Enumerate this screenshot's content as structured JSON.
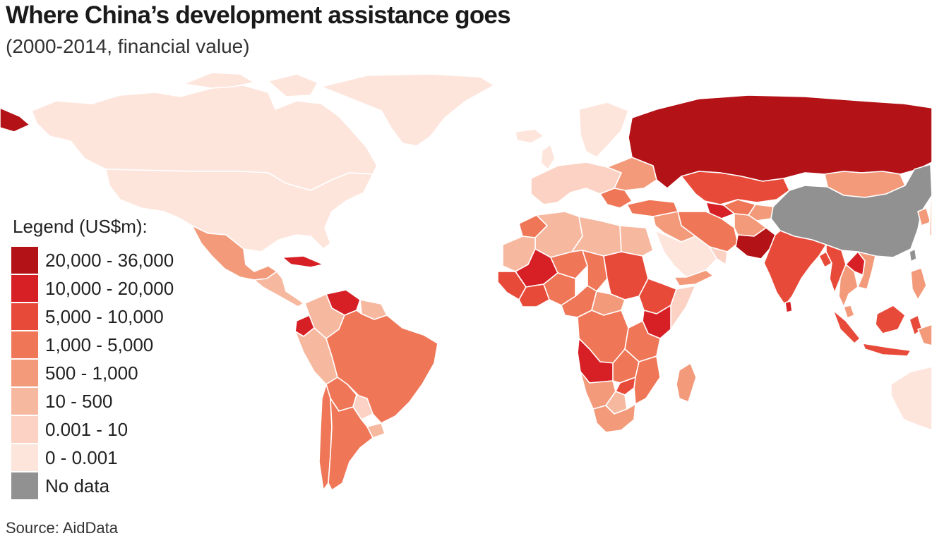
{
  "header": {
    "title": "Where China’s development assistance goes",
    "subtitle": "(2000-2014, financial value)"
  },
  "legend": {
    "title": "Legend (US$m):",
    "items": [
      {
        "label": "20,000 - 36,000",
        "color": "#b31217"
      },
      {
        "label": "10,000 - 20,000",
        "color": "#d62026"
      },
      {
        "label": "5,000 - 10,000",
        "color": "#e84a3a"
      },
      {
        "label": "1,000 - 5,000",
        "color": "#ef7657"
      },
      {
        "label": "500 - 1,000",
        "color": "#f39a7b"
      },
      {
        "label": "10 - 500",
        "color": "#f7b8a0"
      },
      {
        "label": "0.001 - 10",
        "color": "#fbd2c3"
      },
      {
        "label": "0 - 0.001",
        "color": "#fde5dc"
      },
      {
        "label": "No data",
        "color": "#919191"
      }
    ]
  },
  "map": {
    "regions": [
      {
        "name": "russia",
        "class": "20,000 - 36,000"
      },
      {
        "name": "pakistan",
        "class": "20,000 - 36,000"
      },
      {
        "name": "angola",
        "class": "10,000 - 20,000"
      },
      {
        "name": "venezuela",
        "class": "10,000 - 20,000"
      },
      {
        "name": "ecuador",
        "class": "10,000 - 20,000"
      },
      {
        "name": "kenya",
        "class": "10,000 - 20,000"
      },
      {
        "name": "mali",
        "class": "10,000 - 20,000"
      },
      {
        "name": "laos",
        "class": "10,000 - 20,000"
      },
      {
        "name": "turkmenistan",
        "class": "10,000 - 20,000"
      },
      {
        "name": "kazakhstan",
        "class": "5,000 - 10,000"
      },
      {
        "name": "india",
        "class": "5,000 - 10,000"
      },
      {
        "name": "indonesia",
        "class": "5,000 - 10,000"
      },
      {
        "name": "sudan",
        "class": "5,000 - 10,000"
      },
      {
        "name": "ethiopia",
        "class": "5,000 - 10,000"
      },
      {
        "name": "brazil",
        "class": "1,000 - 5,000"
      },
      {
        "name": "argentina",
        "class": "1,000 - 5,000"
      },
      {
        "name": "dr-congo",
        "class": "1,000 - 5,000"
      },
      {
        "name": "iran",
        "class": "1,000 - 5,000"
      },
      {
        "name": "mongolia",
        "class": "500 - 1,000"
      },
      {
        "name": "south-africa",
        "class": "500 - 1,000"
      },
      {
        "name": "mexico",
        "class": "500 - 1,000"
      },
      {
        "name": "peru",
        "class": "10 - 500"
      },
      {
        "name": "egypt",
        "class": "10 - 500"
      },
      {
        "name": "canada",
        "class": "0 - 0.001"
      },
      {
        "name": "usa",
        "class": "0 - 0.001"
      },
      {
        "name": "greenland",
        "class": "0 - 0.001"
      },
      {
        "name": "saudi-arabia",
        "class": "0 - 0.001"
      },
      {
        "name": "australia",
        "class": "0 - 0.001"
      },
      {
        "name": "china",
        "class": "No data"
      },
      {
        "name": "taiwan",
        "class": "No data"
      }
    ]
  },
  "footer": {
    "source": "Source: AidData"
  }
}
